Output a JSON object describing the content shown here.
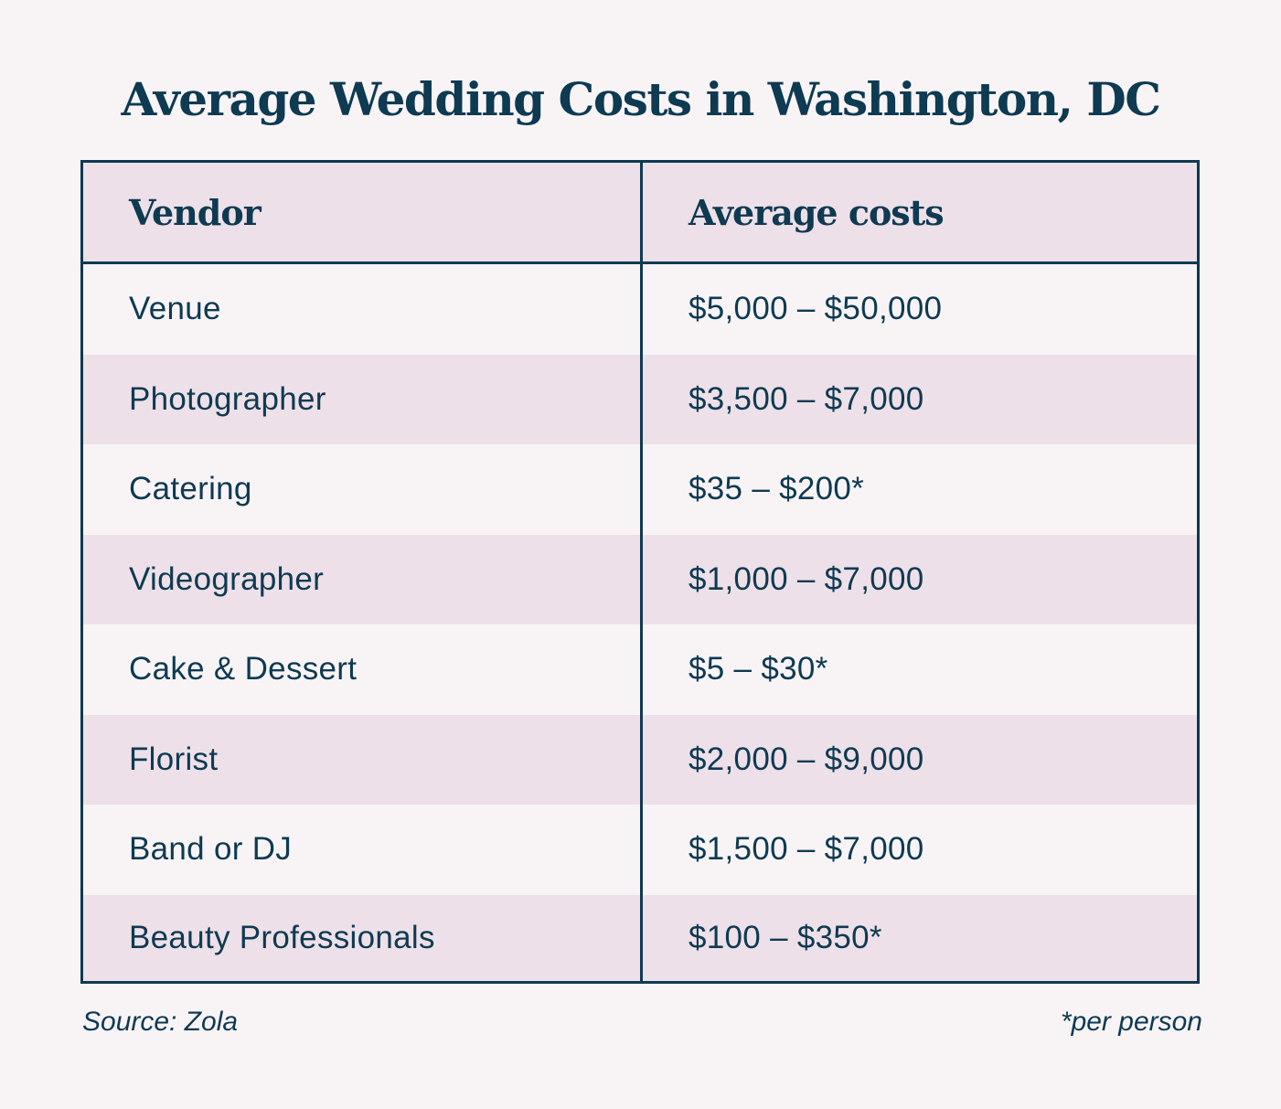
{
  "title": "Average Wedding Costs in Washington, DC",
  "table": {
    "headers": {
      "vendor": "Vendor",
      "cost": "Average costs"
    },
    "rows": [
      {
        "vendor": "Venue",
        "cost": "$5,000 – $50,000"
      },
      {
        "vendor": "Photographer",
        "cost": "$3,500 – $7,000"
      },
      {
        "vendor": "Catering",
        "cost": "$35 – $200*"
      },
      {
        "vendor": "Videographer",
        "cost": "$1,000 – $7,000"
      },
      {
        "vendor": "Cake & Dessert",
        "cost": "$5 – $30*"
      },
      {
        "vendor": "Florist",
        "cost": "$2,000 – $9,000"
      },
      {
        "vendor": "Band or DJ",
        "cost": "$1,500 – $7,000"
      },
      {
        "vendor": "Beauty Professionals",
        "cost": "$100 – $350*"
      }
    ]
  },
  "footer": {
    "source": "Source: Zola",
    "note": "*per person"
  },
  "colors": {
    "text": "#0e3a52",
    "background": "#f8f4f6",
    "shaded_row": "#eee0e8"
  }
}
